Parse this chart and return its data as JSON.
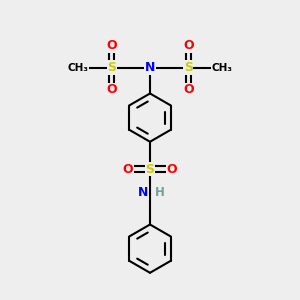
{
  "bg_color": "#eeeeee",
  "atom_colors": {
    "C": "#000000",
    "H": "#6fa0a0",
    "N": "#0000ff",
    "O": "#ff0000",
    "S": "#cccc00"
  },
  "figsize": [
    3.0,
    3.0
  ],
  "dpi": 100,
  "xlim": [
    0,
    10
  ],
  "ylim": [
    0,
    10
  ]
}
